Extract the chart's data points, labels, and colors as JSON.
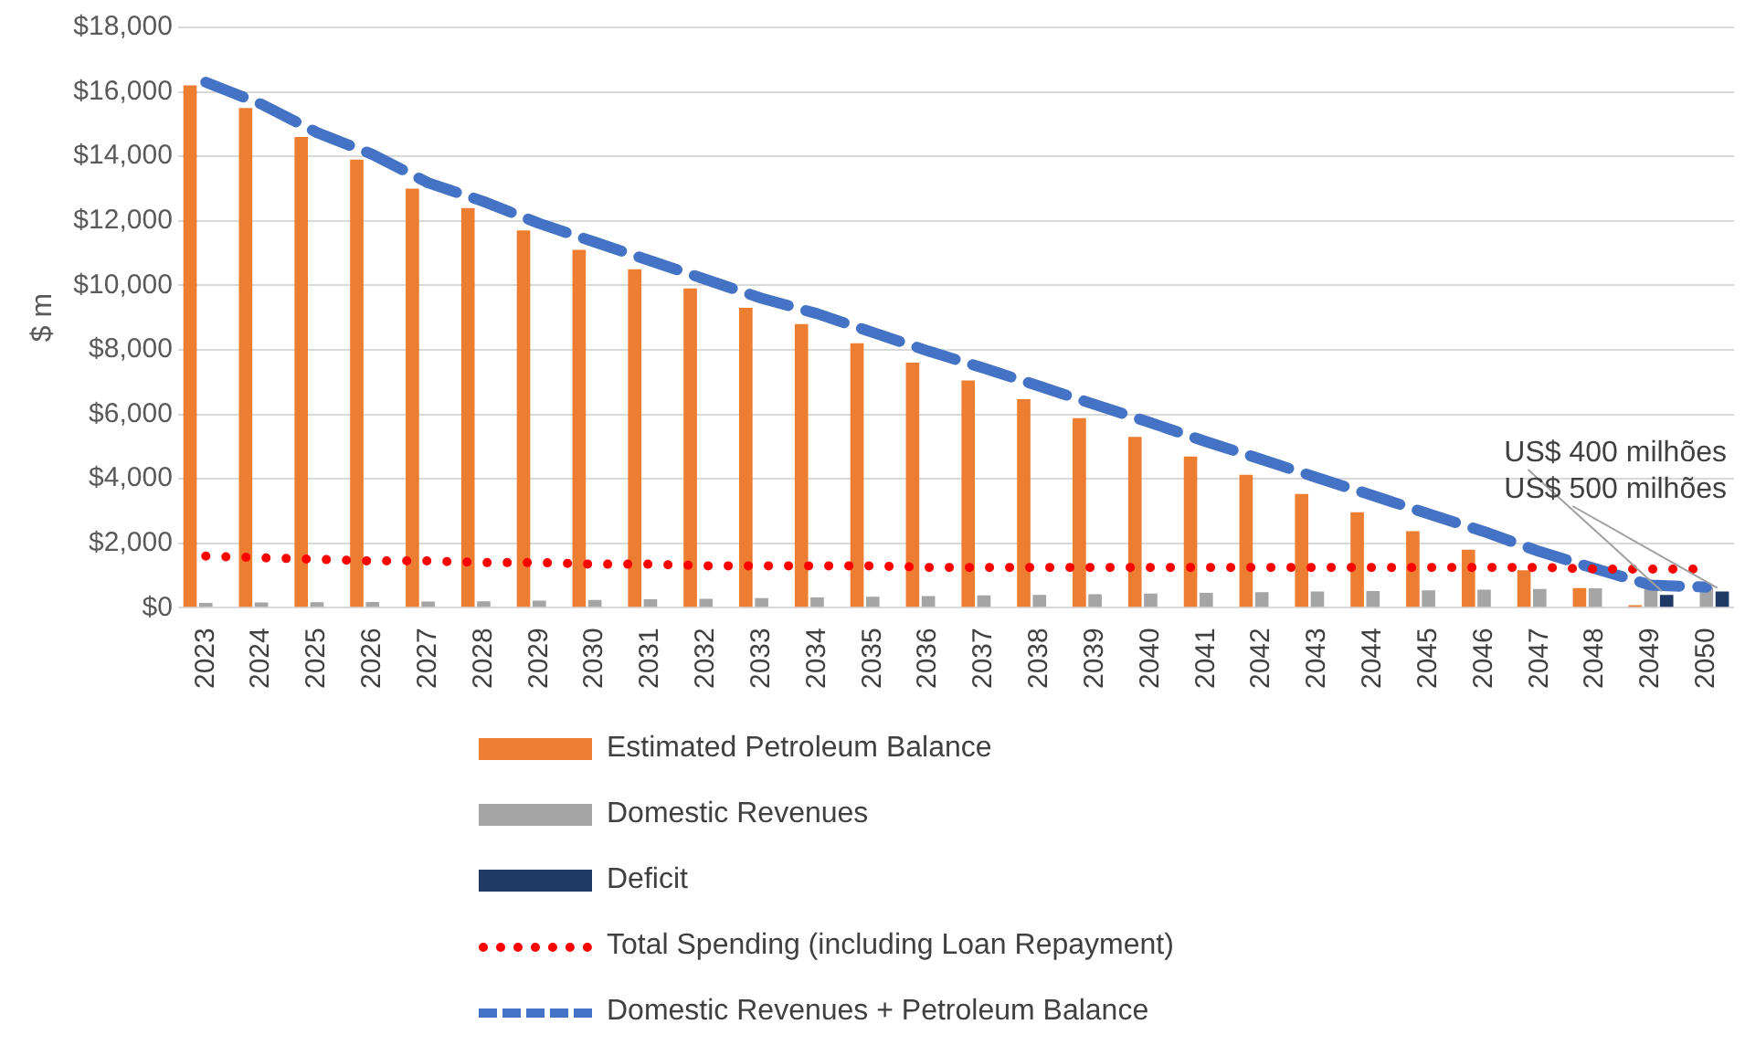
{
  "chart_data": {
    "type": "bar",
    "ylabel": "$ m",
    "categories": [
      "2023",
      "2024",
      "2025",
      "2026",
      "2027",
      "2028",
      "2029",
      "2030",
      "2031",
      "2032",
      "2033",
      "2034",
      "2035",
      "2036",
      "2037",
      "2038",
      "2039",
      "2040",
      "2041",
      "2042",
      "2043",
      "2044",
      "2045",
      "2046",
      "2047",
      "2048",
      "2049",
      "2050"
    ],
    "series": [
      {
        "name": "Estimated Petroleum Balance",
        "color": "#ed7d31",
        "values": [
          16200,
          15500,
          14600,
          13900,
          13000,
          12400,
          11700,
          11100,
          10500,
          9900,
          9300,
          8800,
          8200,
          7600,
          7050,
          6470,
          5880,
          5300,
          4690,
          4120,
          3530,
          2960,
          2370,
          1800,
          1160,
          610,
          80,
          null
        ]
      },
      {
        "name": "Domestic Revenues",
        "color": "#a5a5a5",
        "values": [
          150,
          160,
          170,
          180,
          190,
          200,
          220,
          240,
          260,
          280,
          300,
          320,
          340,
          360,
          380,
          400,
          420,
          440,
          460,
          480,
          500,
          520,
          540,
          560,
          580,
          600,
          620,
          640
        ]
      },
      {
        "name": "Deficit",
        "color": "#1f3864",
        "values": [
          null,
          null,
          null,
          null,
          null,
          null,
          null,
          null,
          null,
          null,
          null,
          null,
          null,
          null,
          null,
          null,
          null,
          null,
          null,
          null,
          null,
          null,
          null,
          null,
          null,
          null,
          400,
          500
        ]
      },
      {
        "name": "Total Spending (including Loan Repayment)",
        "type": "line",
        "color": "#ff0000",
        "line_style": "dotted",
        "values": [
          1600,
          1550,
          1500,
          1450,
          1450,
          1400,
          1400,
          1350,
          1350,
          1300,
          1300,
          1300,
          1300,
          1250,
          1250,
          1250,
          1250,
          1250,
          1250,
          1250,
          1250,
          1250,
          1250,
          1250,
          1250,
          1200,
          1200,
          1200
        ]
      },
      {
        "name": "Domestic Revenues + Petroleum Balance",
        "type": "line",
        "color": "#4472c4",
        "line_style": "dashed",
        "values": [
          16300,
          15620,
          14740,
          14060,
          13180,
          12600,
          11920,
          11340,
          10760,
          10180,
          9600,
          9120,
          8540,
          7960,
          7430,
          6870,
          6300,
          5740,
          5150,
          4600,
          4030,
          3480,
          2910,
          2360,
          1740,
          1210,
          700,
          640
        ]
      }
    ],
    "ylim": [
      0,
      18000
    ],
    "yticks": [
      {
        "value": 0,
        "label": "$0"
      },
      {
        "value": 2000,
        "label": "$2,000"
      },
      {
        "value": 4000,
        "label": "$4,000"
      },
      {
        "value": 6000,
        "label": "$6,000"
      },
      {
        "value": 8000,
        "label": "$8,000"
      },
      {
        "value": 10000,
        "label": "$10,000"
      },
      {
        "value": 12000,
        "label": "$12,000"
      },
      {
        "value": 14000,
        "label": "$14,000"
      },
      {
        "value": 16000,
        "label": "$16,000"
      },
      {
        "value": 18000,
        "label": "$18,000"
      }
    ],
    "grid": "y",
    "legend": "bottom",
    "marker": "none",
    "annotations": [
      {
        "text": "US$ 400 milhões",
        "x": "2049",
        "y": 400
      },
      {
        "text": "US$ 500 milhões",
        "x": "2050",
        "y": 500
      }
    ]
  }
}
